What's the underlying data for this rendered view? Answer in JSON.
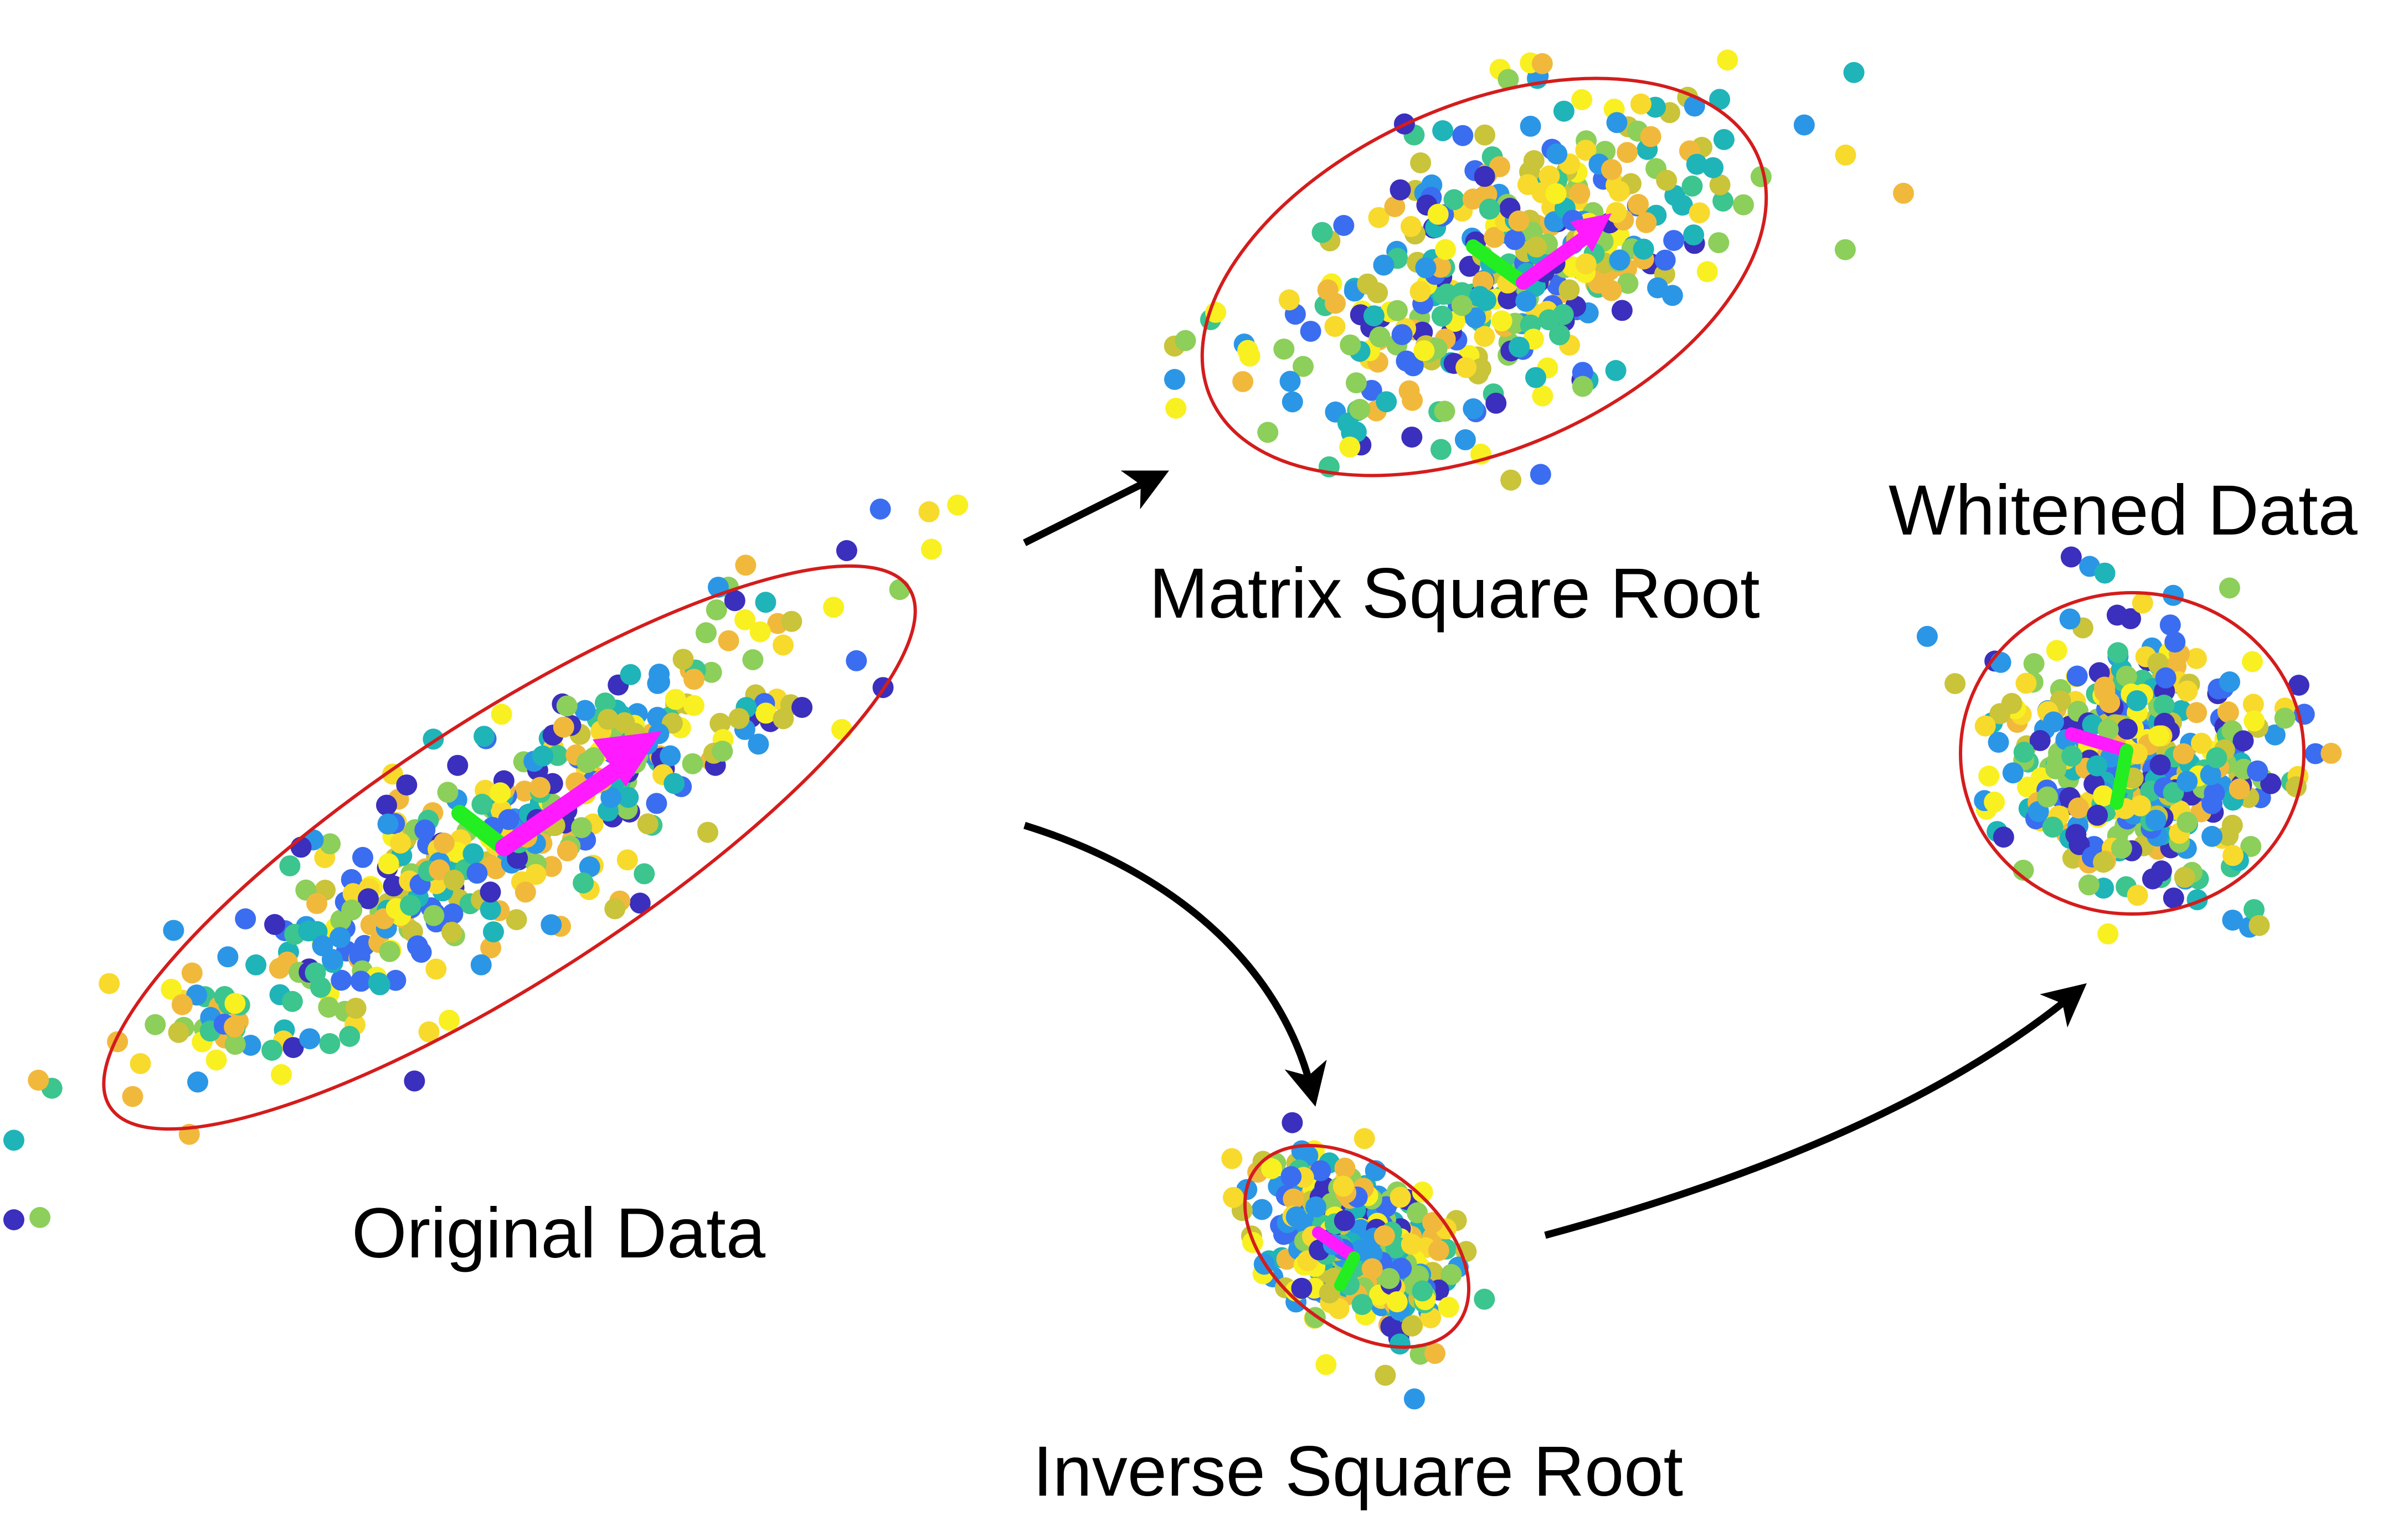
{
  "labels": {
    "original": "Original Data",
    "matrix_sqrt": "Matrix Square Root",
    "inverse_sqrt": "Inverse Square Root",
    "whitened": "Whitened Data"
  },
  "colors": {
    "background": "#ffffff",
    "ellipse": "#d41c1c",
    "major_axis": "#ff1aff",
    "minor_axis": "#22ee22",
    "flow_arrow": "#000000",
    "point_palette": [
      "#3b2fbd",
      "#3a6df0",
      "#2b96e6",
      "#1fb4b8",
      "#3cc58e",
      "#8ccf5a",
      "#c9c43a",
      "#f1b93c",
      "#f8da2c",
      "#f9f021"
    ]
  },
  "clusters": [
    {
      "id": "original",
      "point_count": 420,
      "shape": "elongated ellipse tilted up-right"
    },
    {
      "id": "matrix_sqrt",
      "point_count": 380,
      "shape": "moderately elongated ellipse"
    },
    {
      "id": "inverse_sqrt",
      "point_count": 330,
      "shape": "compact tilted ellipse"
    },
    {
      "id": "whitened",
      "point_count": 380,
      "shape": "circle"
    }
  ],
  "flows": [
    {
      "from": "original",
      "to": "matrix_sqrt",
      "style": "straight"
    },
    {
      "from": "original",
      "to": "inverse_sqrt",
      "style": "curved"
    },
    {
      "from": "inverse_sqrt",
      "to": "whitened",
      "style": "curved"
    }
  ]
}
